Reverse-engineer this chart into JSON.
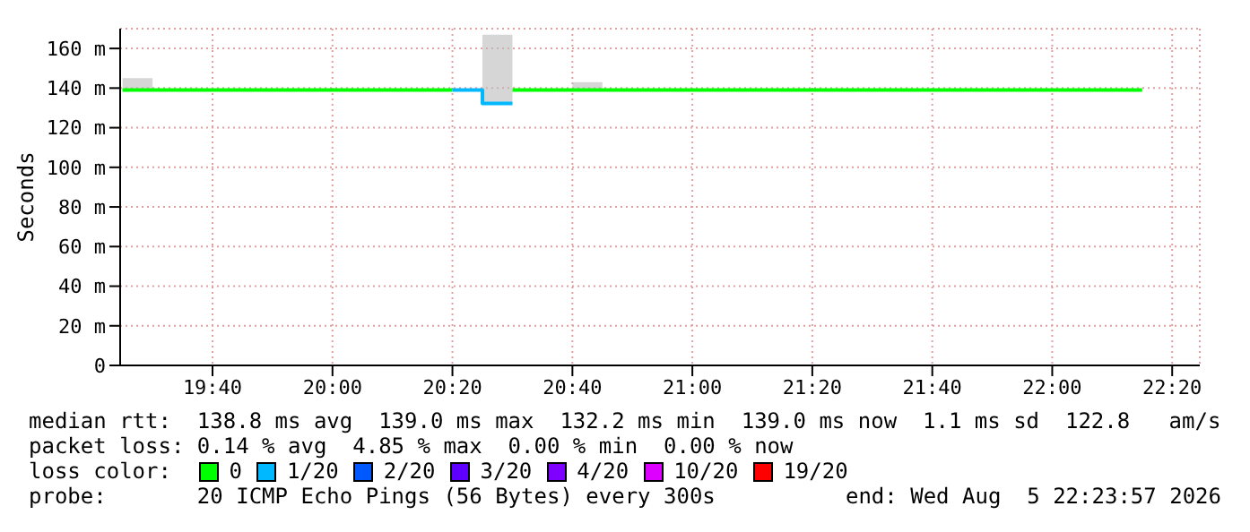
{
  "chart_data": {
    "type": "step",
    "ylabel": "Seconds",
    "legend_title": "loss color:",
    "legend": "bottom",
    "grid": true,
    "marker": "none",
    "xlim": [
      19.41,
      22.41
    ],
    "xticks": [
      {
        "value": 19.6667,
        "label": "19:40"
      },
      {
        "value": 20,
        "label": "20:00"
      },
      {
        "value": 20.3333,
        "label": "20:20"
      },
      {
        "value": 20.6667,
        "label": "20:40"
      },
      {
        "value": 21,
        "label": "21:00"
      },
      {
        "value": 21.3333,
        "label": "21:20"
      },
      {
        "value": 21.6667,
        "label": "21:40"
      },
      {
        "value": 22,
        "label": "22:00"
      },
      {
        "value": 22.3333,
        "label": "22:20"
      }
    ],
    "ylim": [
      0,
      170
    ],
    "yticks": [
      0,
      {
        "value": 20,
        "label": "20 m"
      },
      {
        "value": 40,
        "label": "40 m"
      },
      {
        "value": 60,
        "label": "60 m"
      },
      {
        "value": 80,
        "label": "80 m"
      },
      {
        "value": 100,
        "label": "100 m"
      },
      {
        "value": 120,
        "label": "120 m"
      },
      {
        "value": 140,
        "label": "140 m"
      },
      {
        "value": 160,
        "label": "160 m"
      }
    ],
    "series": [
      {
        "name": "0",
        "color": "#00ff00",
        "x": [
          19.4167,
          19.5,
          20.3333,
          20.4167,
          20.5,
          20.6667,
          20.75,
          22.25
        ],
        "values": [
          139,
          139,
          139,
          null,
          139,
          139,
          139,
          139
        ],
        "lower": [
          139,
          139,
          139,
          132.2,
          139,
          139,
          139,
          139
        ],
        "upper": [
          145,
          139,
          139,
          167,
          139,
          143,
          139,
          139
        ]
      },
      {
        "name": "1/20",
        "color": "#00b8ff",
        "x": [
          20.3333,
          20.4167,
          20.5
        ],
        "values": [
          139,
          132.2,
          132.2
        ]
      },
      {
        "name": "2/20",
        "color": "#0059ff"
      },
      {
        "name": "3/20",
        "color": "#5e00ff"
      },
      {
        "name": "4/20",
        "color": "#7e00ff"
      },
      {
        "name": "10/20",
        "color": "#dd00ff"
      },
      {
        "name": "19/20",
        "color": "#ff0000"
      }
    ],
    "annotations": [
      "median rtt:  138.8 ms avg  139.0 ms max  132.2 ms min  139.0 ms now  1.1 ms sd  122.8   am/s",
      "packet loss: 0.14 % avg  4.85 % max  0.00 % min  0.00 % now",
      "probe:       20 ICMP Echo Pings (56 Bytes) every 300s",
      "end: Wed Aug  5 22:23:57 2026"
    ]
  }
}
